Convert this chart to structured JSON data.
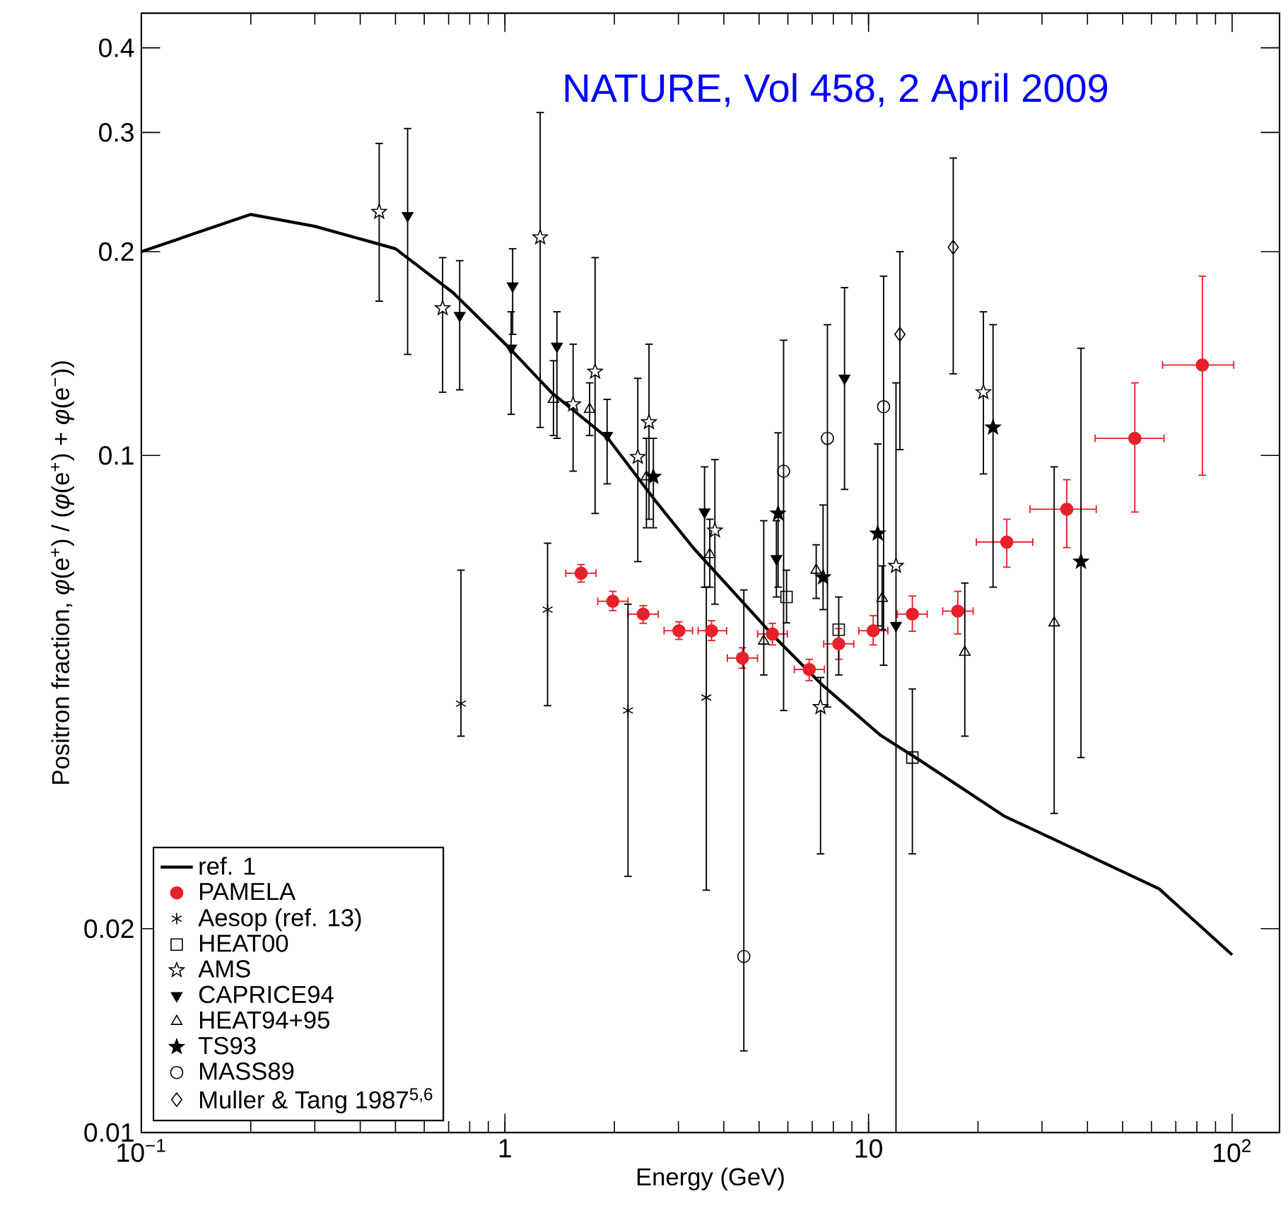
{
  "chart_data": {
    "type": "scatter",
    "xlabel": "Energy (GeV)",
    "ylabel": "Positron fraction, *φ*(e$^{+}$) / (*φ*(e$^{+}$) + *φ*(e$^{−}$))",
    "annotations": [
      "NATURE, Vol 458, 2 April 2009"
    ],
    "log": "xy",
    "xlim": [
      0.1,
      135
    ],
    "ylim": [
      0.01,
      0.45
    ],
    "xticks": [
      {
        "value": 0.1,
        "label": "10$^{−1}$"
      },
      1,
      10,
      {
        "value": 100,
        "label": "10$^{2}$"
      }
    ],
    "yticks": [
      0.01,
      0.02,
      0.1,
      0.2,
      0.3,
      0.4
    ],
    "legend": "bottom left",
    "series": [
      {
        "name": "ref. 1",
        "type": "line",
        "color": "#000000",
        "x": [
          0.1,
          0.2,
          0.3,
          0.5,
          0.72,
          1.03,
          1.34,
          1.92,
          2.58,
          3.3,
          5.5,
          7.4,
          10.8,
          13.8,
          23.7,
          37,
          63,
          100
        ],
        "values": [
          0.2,
          0.227,
          0.218,
          0.202,
          0.174,
          0.144,
          0.124,
          0.106,
          0.086,
          0.073,
          0.054,
          0.046,
          0.0386,
          0.0355,
          0.0293,
          0.0262,
          0.0229,
          0.0183
        ]
      },
      {
        "name": "PAMELA",
        "color": "#e8202a",
        "marker": "circle",
        "x": [
          1.62,
          1.98,
          2.4,
          3.01,
          3.7,
          4.5,
          5.44,
          6.87,
          8.28,
          10.3,
          13.2,
          17.6,
          24.0,
          35.1,
          54.0,
          82.8
        ],
        "values": [
          0.067,
          0.0609,
          0.0583,
          0.0551,
          0.0551,
          0.0502,
          0.0545,
          0.0483,
          0.0527,
          0.0551,
          0.0583,
          0.0589,
          0.0745,
          0.0833,
          0.106,
          0.136
        ],
        "errors": [
          [
            0.065,
            0.069
          ],
          [
            0.059,
            0.063
          ],
          [
            0.0565,
            0.06
          ],
          [
            0.0535,
            0.0568
          ],
          [
            0.0533,
            0.057
          ],
          [
            0.0485,
            0.052
          ],
          [
            0.0525,
            0.0565
          ],
          [
            0.0465,
            0.05
          ],
          [
            0.05,
            0.0555
          ],
          [
            0.0525,
            0.058
          ],
          [
            0.055,
            0.062
          ],
          [
            0.0545,
            0.063
          ],
          [
            0.0684,
            0.0805
          ],
          [
            0.0731,
            0.0921
          ],
          [
            0.0825,
            0.128
          ],
          [
            0.0935,
            0.184
          ]
        ],
        "xerrors": [
          [
            1.47,
            1.78
          ],
          [
            1.8,
            2.18
          ],
          [
            2.18,
            2.64
          ],
          [
            2.74,
            3.28
          ],
          [
            3.4,
            4.07
          ],
          [
            4.09,
            4.95
          ],
          [
            4.95,
            5.98
          ],
          [
            6.25,
            7.56
          ],
          [
            7.53,
            9.11
          ],
          [
            9.4,
            11.3
          ],
          [
            12.0,
            14.5
          ],
          [
            16.0,
            19.4
          ],
          [
            19.8,
            28.3
          ],
          [
            27.8,
            42.3
          ],
          [
            42,
            65
          ],
          [
            64.4,
            101
          ]
        ]
      },
      {
        "name": "Aesop (ref. 13)",
        "color": "#000000",
        "marker": "cross",
        "x": [
          0.757,
          1.31,
          2.18,
          3.58
        ],
        "values": [
          0.043,
          0.0592,
          0.042,
          0.0439
        ],
        "errors": [
          [
            0.0385,
            0.0677
          ],
          [
            0.0427,
            0.0742
          ],
          [
            0.0239,
            0.0603
          ],
          [
            0.0228,
            0.0639
          ]
        ]
      },
      {
        "name": "HEAT00",
        "color": "#000000",
        "marker": "square",
        "x": [
          5.95,
          8.28,
          13.2
        ],
        "values": [
          0.0618,
          0.0553,
          0.0358
        ],
        "errors": [
          [
            0.0566,
            0.0677
          ],
          [
            0.0474,
            0.0618
          ],
          [
            0.0258,
            0.0452
          ]
        ]
      },
      {
        "name": "AMS",
        "color": "#000000",
        "marker": "star",
        "x": [
          0.451,
          0.674,
          1.25,
          1.54,
          1.77,
          2.32,
          2.49,
          3.78,
          7.38,
          11.9,
          20.7
        ],
        "values": [
          0.229,
          0.165,
          0.21,
          0.119,
          0.133,
          0.0995,
          0.112,
          0.0775,
          0.0425,
          0.0687,
          0.124
        ],
        "errors": [
          [
            0.169,
            0.289
          ],
          [
            0.124,
            0.196
          ],
          [
            0.11,
            0.321
          ],
          [
            0.0948,
            0.146
          ],
          [
            0.0821,
            0.196
          ],
          [
            0.0697,
            0.13
          ],
          [
            0.0805,
            0.146
          ],
          [
            0.0603,
            0.0986
          ],
          [
            0.0258,
            0.047
          ],
          [
            0.01,
            0.128
          ],
          [
            0.0939,
            0.163
          ]
        ]
      },
      {
        "name": "CAPRICE94",
        "color": "#000000",
        "marker": "triangle",
        "x": [
          0.54,
          0.751,
          1.05,
          1.04,
          1.39,
          1.91,
          3.54,
          5.58,
          8.59,
          11.9
        ],
        "values": [
          0.226,
          0.161,
          0.178,
          0.144,
          0.145,
          0.107,
          0.0825,
          0.0704,
          0.13,
          0.0561
        ],
        "errors": [
          [
            0.141,
            0.304
          ],
          [
            0.125,
            0.194
          ],
          [
            0.151,
            0.202
          ],
          [
            0.115,
            0.163
          ],
          [
            0.106,
            0.163
          ],
          [
            0.0908,
            0.121
          ],
          [
            0.0639,
            0.0962
          ],
          [
            0.0618,
            0.0801
          ],
          [
            0.0891,
            0.177
          ],
          null
        ]
      },
      {
        "name": "HEAT94+95",
        "color": "#000000",
        "marker": "triangle",
        "x": [
          1.36,
          1.71,
          2.45,
          3.66,
          5.15,
          7.18,
          10.9,
          18.4,
          32.4
        ],
        "values": [
          0.121,
          0.117,
          0.093,
          0.0714,
          0.0532,
          0.0677,
          0.0615,
          0.0512,
          0.0566
        ],
        "errors": [
          [
            0.107,
            0.138
          ],
          [
            0.107,
            0.128
          ],
          [
            0.0782,
            0.106
          ],
          [
            0.0639,
            0.0805
          ],
          [
            0.0474,
            0.0801
          ],
          [
            0.0615,
            0.0738
          ],
          [
            0.0553,
            0.0687
          ],
          [
            0.0385,
            0.0648
          ],
          [
            0.0296,
            0.0962
          ]
        ]
      },
      {
        "name": "TS93",
        "color": "#000000",
        "marker": "star",
        "x": [
          2.56,
          5.64,
          7.5,
          10.6,
          22.0,
          38.4
        ],
        "values": [
          0.093,
          0.0821,
          0.0661,
          0.0767,
          0.11,
          0.0697
        ],
        "errors": [
          [
            0.0782,
            0.106
          ],
          [
            0.0639,
            0.108
          ],
          [
            0.0592,
            0.0845
          ],
          [
            0.056,
            0.104
          ],
          [
            0.0639,
            0.156
          ],
          [
            0.0358,
            0.144
          ]
        ]
      },
      {
        "name": "MASS89",
        "color": "#000000",
        "marker": "circle",
        "x": [
          4.54,
          5.84,
          7.71,
          11.0
        ],
        "values": [
          0.0182,
          0.0948,
          0.106,
          0.118
        ],
        "errors": [
          [
            0.0132,
            0.0633
          ],
          [
            0.042,
            0.148
          ],
          [
            0.0425,
            0.156
          ],
          [
            0.049,
            0.184
          ]
        ]
      },
      {
        "name": "Muller & Tang 1987$^{5,6}$",
        "color": "#000000",
        "marker": "diamond",
        "x": [
          12.2,
          17.1
        ],
        "values": [
          0.151,
          0.203
        ],
        "errors": [
          [
            0.102,
            0.2
          ],
          [
            0.132,
            0.275
          ]
        ]
      }
    ]
  }
}
